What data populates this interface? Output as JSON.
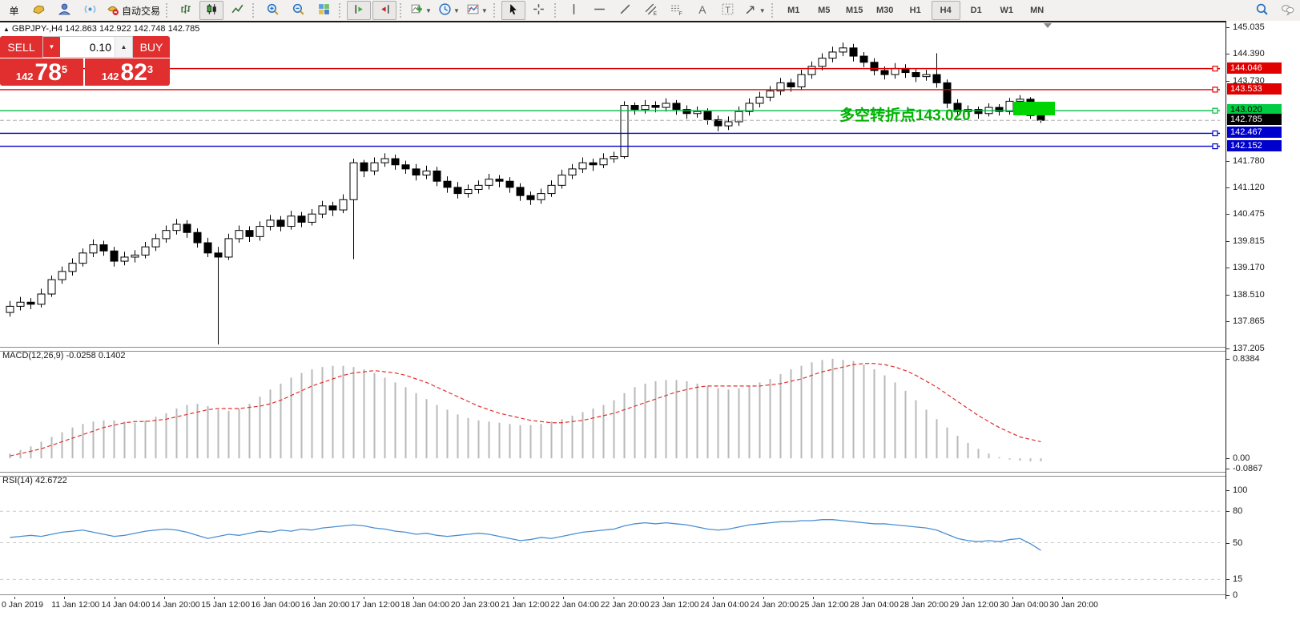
{
  "toolbar": {
    "new_order_label": "单",
    "autotrading_label": "自动交易",
    "icon_letters": {
      "channel": "E",
      "fibonacci": "F",
      "text_tool": "A",
      "label_tool": "T"
    },
    "timeframes": [
      {
        "label": "M1",
        "active": false
      },
      {
        "label": "M5",
        "active": false
      },
      {
        "label": "M15",
        "active": false
      },
      {
        "label": "M30",
        "active": false
      },
      {
        "label": "H1",
        "active": false
      },
      {
        "label": "H4",
        "active": true
      },
      {
        "label": "D1",
        "active": false
      },
      {
        "label": "W1",
        "active": false
      },
      {
        "label": "MN",
        "active": false
      }
    ]
  },
  "symbol_info": {
    "marker": "▲",
    "line": "GBPJPY-,H4  142.863 142.922 142.748 142.785"
  },
  "trade_panel": {
    "sell_label": "SELL",
    "buy_label": "BUY",
    "volume": "0.10",
    "sell_price": {
      "prefix": "142",
      "big": "78",
      "sup": "5"
    },
    "buy_price": {
      "prefix": "142",
      "big": "82",
      "sup": "3"
    }
  },
  "annotation": {
    "text": "多空转折点143.020",
    "color": "#00b300"
  },
  "price_axis": {
    "badges": [
      {
        "value": "144.046",
        "price": 144.046,
        "bg": "#e00000",
        "fg": "#ffffff"
      },
      {
        "value": "143.533",
        "price": 143.533,
        "bg": "#e00000",
        "fg": "#ffffff"
      },
      {
        "value": "143.020",
        "price": 143.02,
        "bg": "#00cc44",
        "fg": "#000000"
      },
      {
        "value": "142.785",
        "price": 142.785,
        "bg": "#000000",
        "fg": "#ffffff"
      },
      {
        "value": "142.467",
        "price": 142.467,
        "bg": "#0000cc",
        "fg": "#ffffff"
      },
      {
        "value": "142.152",
        "price": 142.152,
        "bg": "#0000cc",
        "fg": "#ffffff"
      }
    ]
  },
  "indicators": {
    "macd": {
      "label": "MACD(12,26,9) -0.0258 0.1402",
      "axis": [
        {
          "text": "0.8384",
          "v": 0.8384
        },
        {
          "text": "0.00",
          "v": 0.0
        },
        {
          "text": "-0.0867",
          "v": -0.0867
        }
      ]
    },
    "rsi": {
      "label": "RSI(14) 42.6722",
      "axis": [
        {
          "text": "100",
          "v": 100
        },
        {
          "text": "80",
          "v": 80
        },
        {
          "text": "50",
          "v": 50
        },
        {
          "text": "15",
          "v": 15
        },
        {
          "text": "0",
          "v": 0
        }
      ]
    }
  },
  "chart_data": [
    {
      "type": "candlestick",
      "title": "GBPJPY- H4",
      "ylim": [
        137.205,
        145.035
      ],
      "yticks": [
        145.035,
        144.39,
        143.73,
        141.78,
        141.12,
        140.475,
        139.815,
        139.17,
        138.51,
        137.865,
        137.205
      ],
      "levels": [
        {
          "price": 144.046,
          "color": "#e00000",
          "style": "solid"
        },
        {
          "price": 143.533,
          "color": "#e00000",
          "style": "solid"
        },
        {
          "price": 143.02,
          "color": "#00bb44",
          "style": "solid"
        },
        {
          "price": 142.467,
          "color": "#0000cc",
          "style": "solid"
        },
        {
          "price": 142.152,
          "color": "#0000cc",
          "style": "solid"
        }
      ],
      "current_price": 142.785,
      "x_labels": [
        "0 Jan 2019",
        "11 Jan 12:00",
        "14 Jan 04:00",
        "14 Jan 20:00",
        "15 Jan 12:00",
        "16 Jan 04:00",
        "16 Jan 20:00",
        "17 Jan 12:00",
        "18 Jan 04:00",
        "20 Jan 23:00",
        "21 Jan 12:00",
        "22 Jan 04:00",
        "22 Jan 20:00",
        "23 Jan 12:00",
        "24 Jan 04:00",
        "24 Jan 20:00",
        "25 Jan 12:00",
        "28 Jan 04:00",
        "28 Jan 20:00",
        "29 Jan 12:00",
        "30 Jan 04:00",
        "30 Jan 20:00"
      ],
      "ohlc": [
        [
          138.1,
          138.38,
          138.0,
          138.25
        ],
        [
          138.25,
          138.48,
          138.15,
          138.35
        ],
        [
          138.35,
          138.45,
          138.18,
          138.3
        ],
        [
          138.3,
          138.68,
          138.22,
          138.55
        ],
        [
          138.55,
          139.0,
          138.48,
          138.9
        ],
        [
          138.9,
          139.22,
          138.8,
          139.1
        ],
        [
          139.1,
          139.42,
          139.0,
          139.3
        ],
        [
          139.3,
          139.66,
          139.22,
          139.55
        ],
        [
          139.55,
          139.88,
          139.45,
          139.75
        ],
        [
          139.75,
          139.85,
          139.48,
          139.6
        ],
        [
          139.6,
          139.7,
          139.22,
          139.35
        ],
        [
          139.35,
          139.58,
          139.25,
          139.45
        ],
        [
          139.45,
          139.62,
          139.32,
          139.5
        ],
        [
          139.5,
          139.82,
          139.42,
          139.7
        ],
        [
          139.7,
          140.02,
          139.6,
          139.9
        ],
        [
          139.9,
          140.22,
          139.8,
          140.1
        ],
        [
          140.1,
          140.38,
          140.0,
          140.25
        ],
        [
          140.25,
          140.35,
          139.92,
          140.05
        ],
        [
          140.05,
          140.15,
          139.68,
          139.8
        ],
        [
          139.8,
          139.92,
          139.45,
          139.55
        ],
        [
          139.55,
          139.7,
          137.32,
          139.45
        ],
        [
          139.45,
          140.02,
          139.38,
          139.9
        ],
        [
          139.9,
          140.22,
          139.8,
          140.1
        ],
        [
          140.1,
          140.2,
          139.82,
          139.95
        ],
        [
          139.95,
          140.32,
          139.85,
          140.2
        ],
        [
          140.2,
          140.48,
          140.1,
          140.35
        ],
        [
          140.35,
          140.45,
          140.08,
          140.2
        ],
        [
          140.2,
          140.58,
          140.12,
          140.45
        ],
        [
          140.45,
          140.55,
          140.18,
          140.3
        ],
        [
          140.3,
          140.62,
          140.22,
          140.5
        ],
        [
          140.5,
          140.82,
          140.4,
          140.7
        ],
        [
          140.7,
          140.8,
          140.45,
          140.6
        ],
        [
          140.6,
          140.98,
          140.52,
          140.85
        ],
        [
          140.85,
          141.85,
          139.4,
          141.75
        ],
        [
          141.75,
          141.82,
          141.4,
          141.55
        ],
        [
          141.55,
          141.88,
          141.45,
          141.75
        ],
        [
          141.75,
          141.98,
          141.65,
          141.85
        ],
        [
          141.85,
          141.95,
          141.58,
          141.7
        ],
        [
          141.7,
          141.8,
          141.48,
          141.6
        ],
        [
          141.6,
          141.72,
          141.32,
          141.45
        ],
        [
          141.45,
          141.68,
          141.35,
          141.55
        ],
        [
          141.55,
          141.65,
          141.18,
          141.3
        ],
        [
          141.3,
          141.42,
          141.02,
          141.15
        ],
        [
          141.15,
          141.28,
          140.88,
          141.0
        ],
        [
          141.0,
          141.22,
          140.9,
          141.1
        ],
        [
          141.1,
          141.32,
          141.0,
          141.2
        ],
        [
          141.2,
          141.48,
          141.1,
          141.35
        ],
        [
          141.35,
          141.45,
          141.15,
          141.3
        ],
        [
          141.3,
          141.4,
          141.02,
          141.15
        ],
        [
          141.15,
          141.25,
          140.82,
          140.95
        ],
        [
          140.95,
          141.05,
          140.72,
          140.85
        ],
        [
          140.85,
          141.12,
          140.75,
          141.0
        ],
        [
          141.0,
          141.32,
          140.92,
          141.2
        ],
        [
          141.2,
          141.58,
          141.12,
          141.45
        ],
        [
          141.45,
          141.72,
          141.35,
          141.6
        ],
        [
          141.6,
          141.88,
          141.5,
          141.75
        ],
        [
          141.75,
          141.85,
          141.55,
          141.7
        ],
        [
          141.7,
          141.98,
          141.62,
          141.85
        ],
        [
          141.85,
          142.02,
          141.75,
          141.9
        ],
        [
          141.9,
          143.25,
          141.85,
          143.15
        ],
        [
          143.15,
          143.22,
          142.92,
          143.05
        ],
        [
          143.05,
          143.28,
          142.95,
          143.15
        ],
        [
          143.15,
          143.25,
          142.98,
          143.1
        ],
        [
          143.1,
          143.32,
          143.0,
          143.2
        ],
        [
          143.2,
          143.28,
          142.92,
          143.05
        ],
        [
          143.05,
          143.15,
          142.82,
          142.95
        ],
        [
          142.95,
          143.12,
          142.85,
          143.0
        ],
        [
          143.0,
          143.08,
          142.68,
          142.8
        ],
        [
          142.8,
          142.9,
          142.52,
          142.65
        ],
        [
          142.65,
          142.88,
          142.55,
          142.75
        ],
        [
          142.75,
          143.12,
          142.65,
          143.0
        ],
        [
          143.0,
          143.32,
          142.9,
          143.2
        ],
        [
          143.2,
          143.48,
          143.1,
          143.35
        ],
        [
          143.35,
          143.62,
          143.25,
          143.5
        ],
        [
          143.5,
          143.82,
          143.4,
          143.7
        ],
        [
          143.7,
          143.8,
          143.48,
          143.6
        ],
        [
          143.6,
          144.02,
          143.52,
          143.9
        ],
        [
          143.9,
          144.22,
          143.8,
          144.1
        ],
        [
          144.1,
          144.42,
          144.0,
          144.3
        ],
        [
          144.3,
          144.58,
          144.2,
          144.45
        ],
        [
          144.45,
          144.68,
          144.35,
          144.55
        ],
        [
          144.55,
          144.65,
          144.22,
          144.35
        ],
        [
          144.35,
          144.45,
          144.08,
          144.2
        ],
        [
          144.2,
          144.3,
          143.88,
          144.0
        ],
        [
          144.0,
          144.1,
          143.78,
          143.9
        ],
        [
          143.9,
          144.18,
          143.8,
          144.05
        ],
        [
          144.05,
          144.15,
          143.82,
          143.95
        ],
        [
          143.95,
          144.05,
          143.72,
          143.85
        ],
        [
          143.85,
          144.02,
          143.75,
          143.9
        ],
        [
          143.9,
          144.42,
          143.58,
          143.7
        ],
        [
          143.7,
          143.78,
          143.08,
          143.2
        ],
        [
          143.2,
          143.3,
          142.88,
          143.0
        ],
        [
          143.0,
          143.15,
          142.92,
          143.05
        ],
        [
          143.05,
          143.12,
          142.82,
          142.95
        ],
        [
          142.95,
          143.2,
          142.88,
          143.1
        ],
        [
          143.1,
          143.18,
          142.9,
          143.0
        ],
        [
          143.0,
          143.33,
          142.92,
          143.25
        ],
        [
          143.25,
          143.4,
          143.15,
          143.3
        ],
        [
          143.3,
          143.35,
          142.82,
          142.9
        ],
        [
          142.9,
          142.98,
          142.72,
          142.785
        ]
      ]
    },
    {
      "type": "bar",
      "name": "MACD",
      "params": "12,26,9",
      "ylim": [
        -0.0867,
        0.8384
      ],
      "histogram": [
        0.04,
        0.07,
        0.1,
        0.14,
        0.18,
        0.22,
        0.26,
        0.29,
        0.31,
        0.32,
        0.32,
        0.31,
        0.3,
        0.32,
        0.35,
        0.38,
        0.42,
        0.45,
        0.46,
        0.44,
        0.41,
        0.4,
        0.42,
        0.46,
        0.52,
        0.58,
        0.63,
        0.68,
        0.72,
        0.75,
        0.77,
        0.78,
        0.78,
        0.77,
        0.75,
        0.72,
        0.68,
        0.64,
        0.6,
        0.55,
        0.5,
        0.45,
        0.41,
        0.37,
        0.34,
        0.32,
        0.31,
        0.3,
        0.29,
        0.28,
        0.28,
        0.29,
        0.31,
        0.33,
        0.36,
        0.39,
        0.42,
        0.45,
        0.49,
        0.55,
        0.6,
        0.63,
        0.65,
        0.66,
        0.66,
        0.65,
        0.63,
        0.61,
        0.59,
        0.58,
        0.59,
        0.61,
        0.64,
        0.67,
        0.71,
        0.75,
        0.78,
        0.81,
        0.83,
        0.84,
        0.83,
        0.82,
        0.79,
        0.75,
        0.7,
        0.64,
        0.57,
        0.49,
        0.41,
        0.33,
        0.26,
        0.19,
        0.13,
        0.08,
        0.04,
        0.01,
        -0.01,
        -0.02,
        -0.025,
        -0.0258
      ],
      "signal": [
        0.02,
        0.04,
        0.06,
        0.08,
        0.11,
        0.14,
        0.17,
        0.2,
        0.23,
        0.26,
        0.28,
        0.3,
        0.31,
        0.31,
        0.32,
        0.33,
        0.35,
        0.37,
        0.39,
        0.41,
        0.42,
        0.42,
        0.42,
        0.43,
        0.44,
        0.46,
        0.49,
        0.53,
        0.57,
        0.61,
        0.64,
        0.67,
        0.7,
        0.72,
        0.73,
        0.74,
        0.73,
        0.72,
        0.7,
        0.67,
        0.64,
        0.6,
        0.56,
        0.52,
        0.48,
        0.44,
        0.41,
        0.38,
        0.36,
        0.34,
        0.32,
        0.31,
        0.3,
        0.3,
        0.31,
        0.32,
        0.34,
        0.36,
        0.38,
        0.41,
        0.44,
        0.47,
        0.5,
        0.53,
        0.56,
        0.58,
        0.6,
        0.61,
        0.61,
        0.61,
        0.61,
        0.61,
        0.61,
        0.62,
        0.63,
        0.65,
        0.67,
        0.7,
        0.73,
        0.75,
        0.77,
        0.79,
        0.8,
        0.8,
        0.79,
        0.77,
        0.74,
        0.7,
        0.65,
        0.6,
        0.54,
        0.48,
        0.42,
        0.36,
        0.31,
        0.26,
        0.22,
        0.18,
        0.16,
        0.1402
      ]
    },
    {
      "type": "line",
      "name": "RSI",
      "period": 14,
      "ylim": [
        0,
        100
      ],
      "levels": [
        80,
        50,
        15
      ],
      "last": 42.6722,
      "values": [
        55,
        56,
        57,
        56,
        58,
        60,
        61,
        62,
        60,
        58,
        56,
        57,
        59,
        61,
        62,
        63,
        62,
        60,
        57,
        54,
        56,
        58,
        57,
        59,
        61,
        60,
        62,
        61,
        63,
        62,
        64,
        65,
        66,
        67,
        66,
        64,
        63,
        61,
        60,
        58,
        59,
        57,
        56,
        57,
        58,
        59,
        58,
        56,
        54,
        52,
        53,
        55,
        54,
        56,
        58,
        60,
        61,
        62,
        63,
        66,
        68,
        69,
        68,
        69,
        68,
        67,
        65,
        63,
        62,
        63,
        65,
        67,
        68,
        69,
        70,
        70,
        71,
        71,
        72,
        72,
        71,
        70,
        69,
        68,
        68,
        67,
        66,
        65,
        64,
        62,
        58,
        54,
        52,
        51,
        52,
        51,
        53,
        54,
        49,
        42.67
      ]
    }
  ]
}
